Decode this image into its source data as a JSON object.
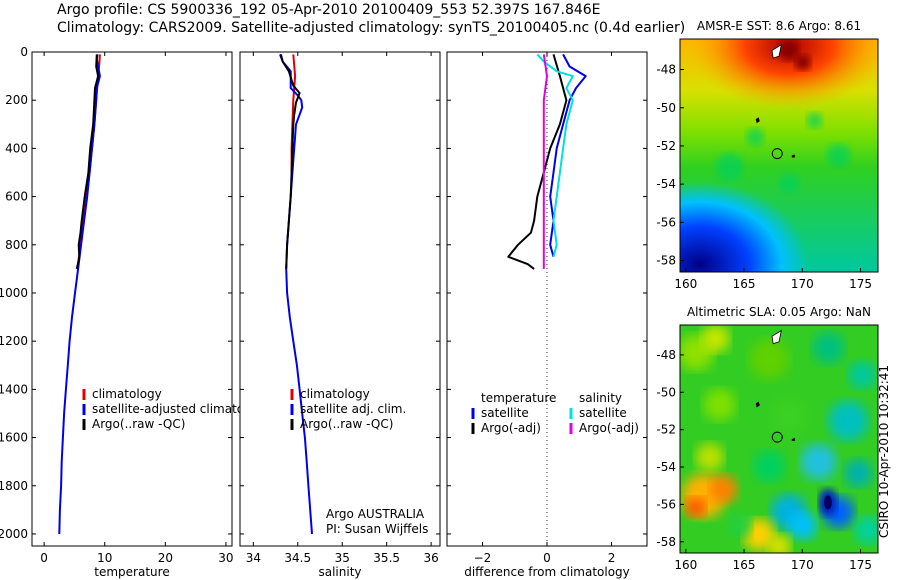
{
  "header": {
    "line1": "Argo profile: CS 5900336_192 05-Apr-2010 20100409_553 52.397S 167.846E",
    "line2": "Climatology: CARS2009. Satellite-adjusted climatology: synTS_20100405.nc (0.4d earlier)"
  },
  "side_label": "CSIRO 10-Apr-2010 10:32:41",
  "colors": {
    "red": "#e00000",
    "blue": "#0000ee",
    "black": "#000000",
    "cyan": "#00e0e0",
    "magenta": "#e000e0"
  },
  "chart_data": [
    {
      "type": "line",
      "xlabel": "temperature",
      "ylim": [
        2050,
        0
      ],
      "xlim": [
        -2,
        31
      ],
      "xticks": [
        0,
        10,
        20,
        30
      ],
      "yticks": [
        0,
        200,
        400,
        600,
        800,
        1000,
        1200,
        1400,
        1600,
        1800,
        2000
      ],
      "legend": {
        "placement": "center",
        "entries": [
          "climatology",
          "satellite-adjusted climatology",
          "Argo(..raw -QC)"
        ]
      },
      "series": [
        {
          "name": "climatology",
          "color": "red",
          "points": [
            [
              9.2,
              10
            ],
            [
              9.1,
              50
            ],
            [
              8.9,
              100
            ],
            [
              8.6,
              200
            ],
            [
              8.3,
              300
            ],
            [
              7.9,
              400
            ],
            [
              7.5,
              500
            ],
            [
              7.0,
              600
            ],
            [
              6.5,
              700
            ],
            [
              6.0,
              800
            ],
            [
              5.5,
              900
            ]
          ]
        },
        {
          "name": "satellite-adjusted climatology",
          "color": "blue",
          "points": [
            [
              8.8,
              10
            ],
            [
              8.7,
              30
            ],
            [
              8.9,
              60
            ],
            [
              9.2,
              100
            ],
            [
              8.7,
              150
            ],
            [
              8.6,
              200
            ],
            [
              8.3,
              300
            ],
            [
              7.9,
              400
            ],
            [
              7.5,
              500
            ],
            [
              7.1,
              600
            ],
            [
              6.6,
              700
            ],
            [
              6.1,
              800
            ],
            [
              5.6,
              900
            ],
            [
              5.1,
              1000
            ],
            [
              4.6,
              1100
            ],
            [
              4.2,
              1200
            ],
            [
              3.9,
              1300
            ],
            [
              3.6,
              1400
            ],
            [
              3.3,
              1500
            ],
            [
              3.1,
              1600
            ],
            [
              2.9,
              1700
            ],
            [
              2.8,
              1800
            ],
            [
              2.6,
              1900
            ],
            [
              2.5,
              2000
            ]
          ]
        },
        {
          "name": "Argo(..raw -QC)",
          "color": "black",
          "points": [
            [
              8.7,
              10
            ],
            [
              8.6,
              60
            ],
            [
              8.9,
              100
            ],
            [
              8.4,
              150
            ],
            [
              8.3,
              200
            ],
            [
              8.1,
              300
            ],
            [
              7.6,
              400
            ],
            [
              7.3,
              500
            ],
            [
              6.7,
              600
            ],
            [
              6.2,
              700
            ],
            [
              6.0,
              750
            ],
            [
              5.7,
              800
            ],
            [
              5.8,
              850
            ],
            [
              5.4,
              900
            ]
          ]
        }
      ]
    },
    {
      "type": "line",
      "xlabel": "salinity",
      "ylim": [
        2050,
        0
      ],
      "xlim": [
        33.85,
        36.1
      ],
      "xticks": [
        34,
        34.5,
        35,
        35.5,
        36
      ],
      "xtick_labels": [
        "34",
        "34.5",
        "35",
        "35.5",
        "36"
      ],
      "legend": {
        "placement": "center",
        "entries": [
          "climatology",
          "satellite adj. clim.",
          "Argo(..raw -QC)"
        ]
      },
      "annotation": [
        "Argo AUSTRALIA",
        "PI: Susan Wijffels"
      ],
      "series": [
        {
          "name": "climatology",
          "color": "red",
          "points": [
            [
              34.45,
              10
            ],
            [
              34.47,
              100
            ],
            [
              34.45,
              200
            ],
            [
              34.44,
              300
            ],
            [
              34.43,
              400
            ],
            [
              34.43,
              500
            ]
          ]
        },
        {
          "name": "satellite adj. clim.",
          "color": "blue",
          "points": [
            [
              34.3,
              10
            ],
            [
              34.33,
              40
            ],
            [
              34.42,
              80
            ],
            [
              34.42,
              150
            ],
            [
              34.5,
              180
            ],
            [
              34.54,
              200
            ],
            [
              34.55,
              230
            ],
            [
              34.52,
              260
            ],
            [
              34.48,
              300
            ],
            [
              34.46,
              400
            ],
            [
              34.44,
              500
            ],
            [
              34.42,
              600
            ],
            [
              34.4,
              700
            ],
            [
              34.38,
              800
            ],
            [
              34.37,
              900
            ],
            [
              34.38,
              1000
            ],
            [
              34.41,
              1100
            ],
            [
              34.45,
              1200
            ],
            [
              34.49,
              1300
            ],
            [
              34.52,
              1400
            ],
            [
              34.55,
              1500
            ],
            [
              34.58,
              1600
            ],
            [
              34.6,
              1700
            ],
            [
              34.62,
              1800
            ],
            [
              34.64,
              1900
            ],
            [
              34.66,
              2000
            ]
          ]
        },
        {
          "name": "Argo(..raw -QC)",
          "color": "black",
          "points": [
            [
              34.31,
              10
            ],
            [
              34.33,
              40
            ],
            [
              34.4,
              80
            ],
            [
              34.45,
              140
            ],
            [
              34.52,
              170
            ],
            [
              34.48,
              210
            ],
            [
              34.46,
              260
            ],
            [
              34.45,
              300
            ],
            [
              34.44,
              400
            ],
            [
              34.43,
              500
            ],
            [
              34.42,
              600
            ],
            [
              34.4,
              700
            ],
            [
              34.38,
              800
            ],
            [
              34.37,
              900
            ]
          ]
        }
      ]
    },
    {
      "type": "line",
      "xlabel": "difference from climatology",
      "ylim": [
        2050,
        0
      ],
      "xlim": [
        -3.1,
        3.1
      ],
      "xticks": [
        -2,
        0,
        2
      ],
      "xtick_labels": [
        "−2",
        "0",
        "2"
      ],
      "zero_line": true,
      "legend": {
        "placement": "center",
        "headers": [
          "temperature",
          "salinity"
        ],
        "entries": [
          "satellite",
          "Argo(-adj)",
          "satellite",
          "Argo(-adj)"
        ]
      },
      "series": [
        {
          "name": "satellite",
          "color": "blue",
          "points": [
            [
              0.5,
              10
            ],
            [
              0.7,
              60
            ],
            [
              1.2,
              100
            ],
            [
              0.9,
              150
            ],
            [
              0.7,
              200
            ],
            [
              0.5,
              300
            ],
            [
              0.3,
              400
            ],
            [
              0.2,
              500
            ],
            [
              0.1,
              600
            ],
            [
              0.2,
              700
            ],
            [
              0.1,
              800
            ],
            [
              0.2,
              850
            ]
          ]
        },
        {
          "name": "Argo(-adj)",
          "color": "black",
          "points": [
            [
              0.2,
              10
            ],
            [
              0.4,
              100
            ],
            [
              0.6,
              200
            ],
            [
              0.4,
              300
            ],
            [
              0.1,
              400
            ],
            [
              -0.1,
              500
            ],
            [
              -0.3,
              600
            ],
            [
              -0.4,
              700
            ],
            [
              -0.5,
              750
            ],
            [
              -0.9,
              800
            ],
            [
              -1.2,
              850
            ],
            [
              -0.6,
              880
            ],
            [
              -0.4,
              900
            ]
          ]
        },
        {
          "name": "satellite",
          "color": "cyan",
          "points": [
            [
              -0.3,
              10
            ],
            [
              -0.1,
              40
            ],
            [
              0.3,
              80
            ],
            [
              0.8,
              100
            ],
            [
              0.6,
              150
            ],
            [
              0.8,
              200
            ],
            [
              0.6,
              300
            ],
            [
              0.5,
              400
            ],
            [
              0.4,
              500
            ],
            [
              0.3,
              600
            ],
            [
              0.2,
              700
            ],
            [
              0.3,
              800
            ],
            [
              0.2,
              850
            ]
          ]
        },
        {
          "name": "Argo(-adj)",
          "color": "magenta",
          "points": [
            [
              -0.1,
              10
            ],
            [
              0.0,
              100
            ],
            [
              -0.1,
              200
            ],
            [
              -0.1,
              300
            ],
            [
              -0.1,
              400
            ],
            [
              -0.1,
              500
            ],
            [
              -0.1,
              600
            ],
            [
              -0.1,
              700
            ],
            [
              -0.1,
              800
            ],
            [
              -0.1,
              900
            ]
          ]
        }
      ]
    },
    {
      "type": "heatmap",
      "title": "AMSR-E SST: 8.6 Argo: 8.61",
      "xticks": [
        160,
        165,
        170,
        175
      ],
      "yticks": [
        -48,
        -50,
        -52,
        -54,
        -56,
        -58
      ],
      "xlim": [
        159.5,
        176.5
      ],
      "ylim": [
        -58.6,
        -46.4
      ],
      "markers": {
        "profile_circle": [
          167.85,
          -52.4
        ]
      }
    },
    {
      "type": "heatmap",
      "title": "Altimetric SLA: 0.05 Argo: NaN",
      "xticks": [
        160,
        165,
        170,
        175
      ],
      "yticks": [
        -48,
        -50,
        -52,
        -54,
        -56,
        -58
      ],
      "xlim": [
        159.5,
        176.5
      ],
      "ylim": [
        -58.6,
        -46.4
      ],
      "markers": {
        "profile_circle": [
          167.85,
          -52.4
        ]
      }
    }
  ]
}
